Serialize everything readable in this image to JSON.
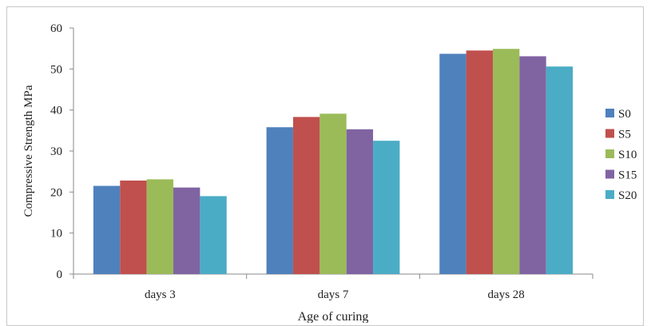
{
  "chart_data": {
    "type": "bar",
    "categories": [
      "days 3",
      "days 7",
      "days 28"
    ],
    "series": [
      {
        "name": "S0",
        "color": "#4f81bd",
        "values": [
          21.5,
          35.8,
          53.7
        ]
      },
      {
        "name": "S5",
        "color": "#c0504d",
        "values": [
          22.8,
          38.3,
          54.5
        ]
      },
      {
        "name": "S10",
        "color": "#9bbb59",
        "values": [
          23.1,
          39.1,
          54.9
        ]
      },
      {
        "name": "S15",
        "color": "#8064a2",
        "values": [
          21.1,
          35.3,
          53.1
        ]
      },
      {
        "name": "S20",
        "color": "#4bacc6",
        "values": [
          19.0,
          32.5,
          50.6
        ]
      }
    ],
    "ylabel": "Compressive Strength MPa",
    "xlabel": "Age of curing",
    "ylim": [
      0,
      60
    ],
    "yticks": [
      0,
      10,
      20,
      30,
      40,
      50,
      60
    ],
    "grid": false,
    "legend_position": "right"
  }
}
